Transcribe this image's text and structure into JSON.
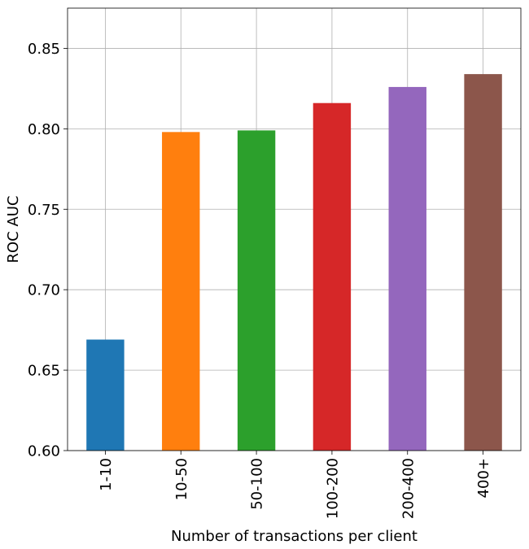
{
  "chart_data": {
    "type": "bar",
    "title": "",
    "xlabel": "Number of transactions per client",
    "ylabel": "ROC AUC",
    "categories": [
      "1-10",
      "10-50",
      "50-100",
      "100-200",
      "200-400",
      "400+"
    ],
    "values": [
      0.669,
      0.798,
      0.799,
      0.816,
      0.826,
      0.834
    ],
    "colors": [
      "#1f77b4",
      "#ff7f0e",
      "#2ca02c",
      "#d62728",
      "#9467bd",
      "#8c564b"
    ],
    "ylim": [
      0.6,
      0.875
    ],
    "yticks": [
      0.6,
      0.65,
      0.7,
      0.75,
      0.8,
      0.85
    ],
    "ytick_labels": [
      "0.60",
      "0.65",
      "0.70",
      "0.75",
      "0.80",
      "0.85"
    ],
    "grid": true,
    "legend": "none"
  }
}
